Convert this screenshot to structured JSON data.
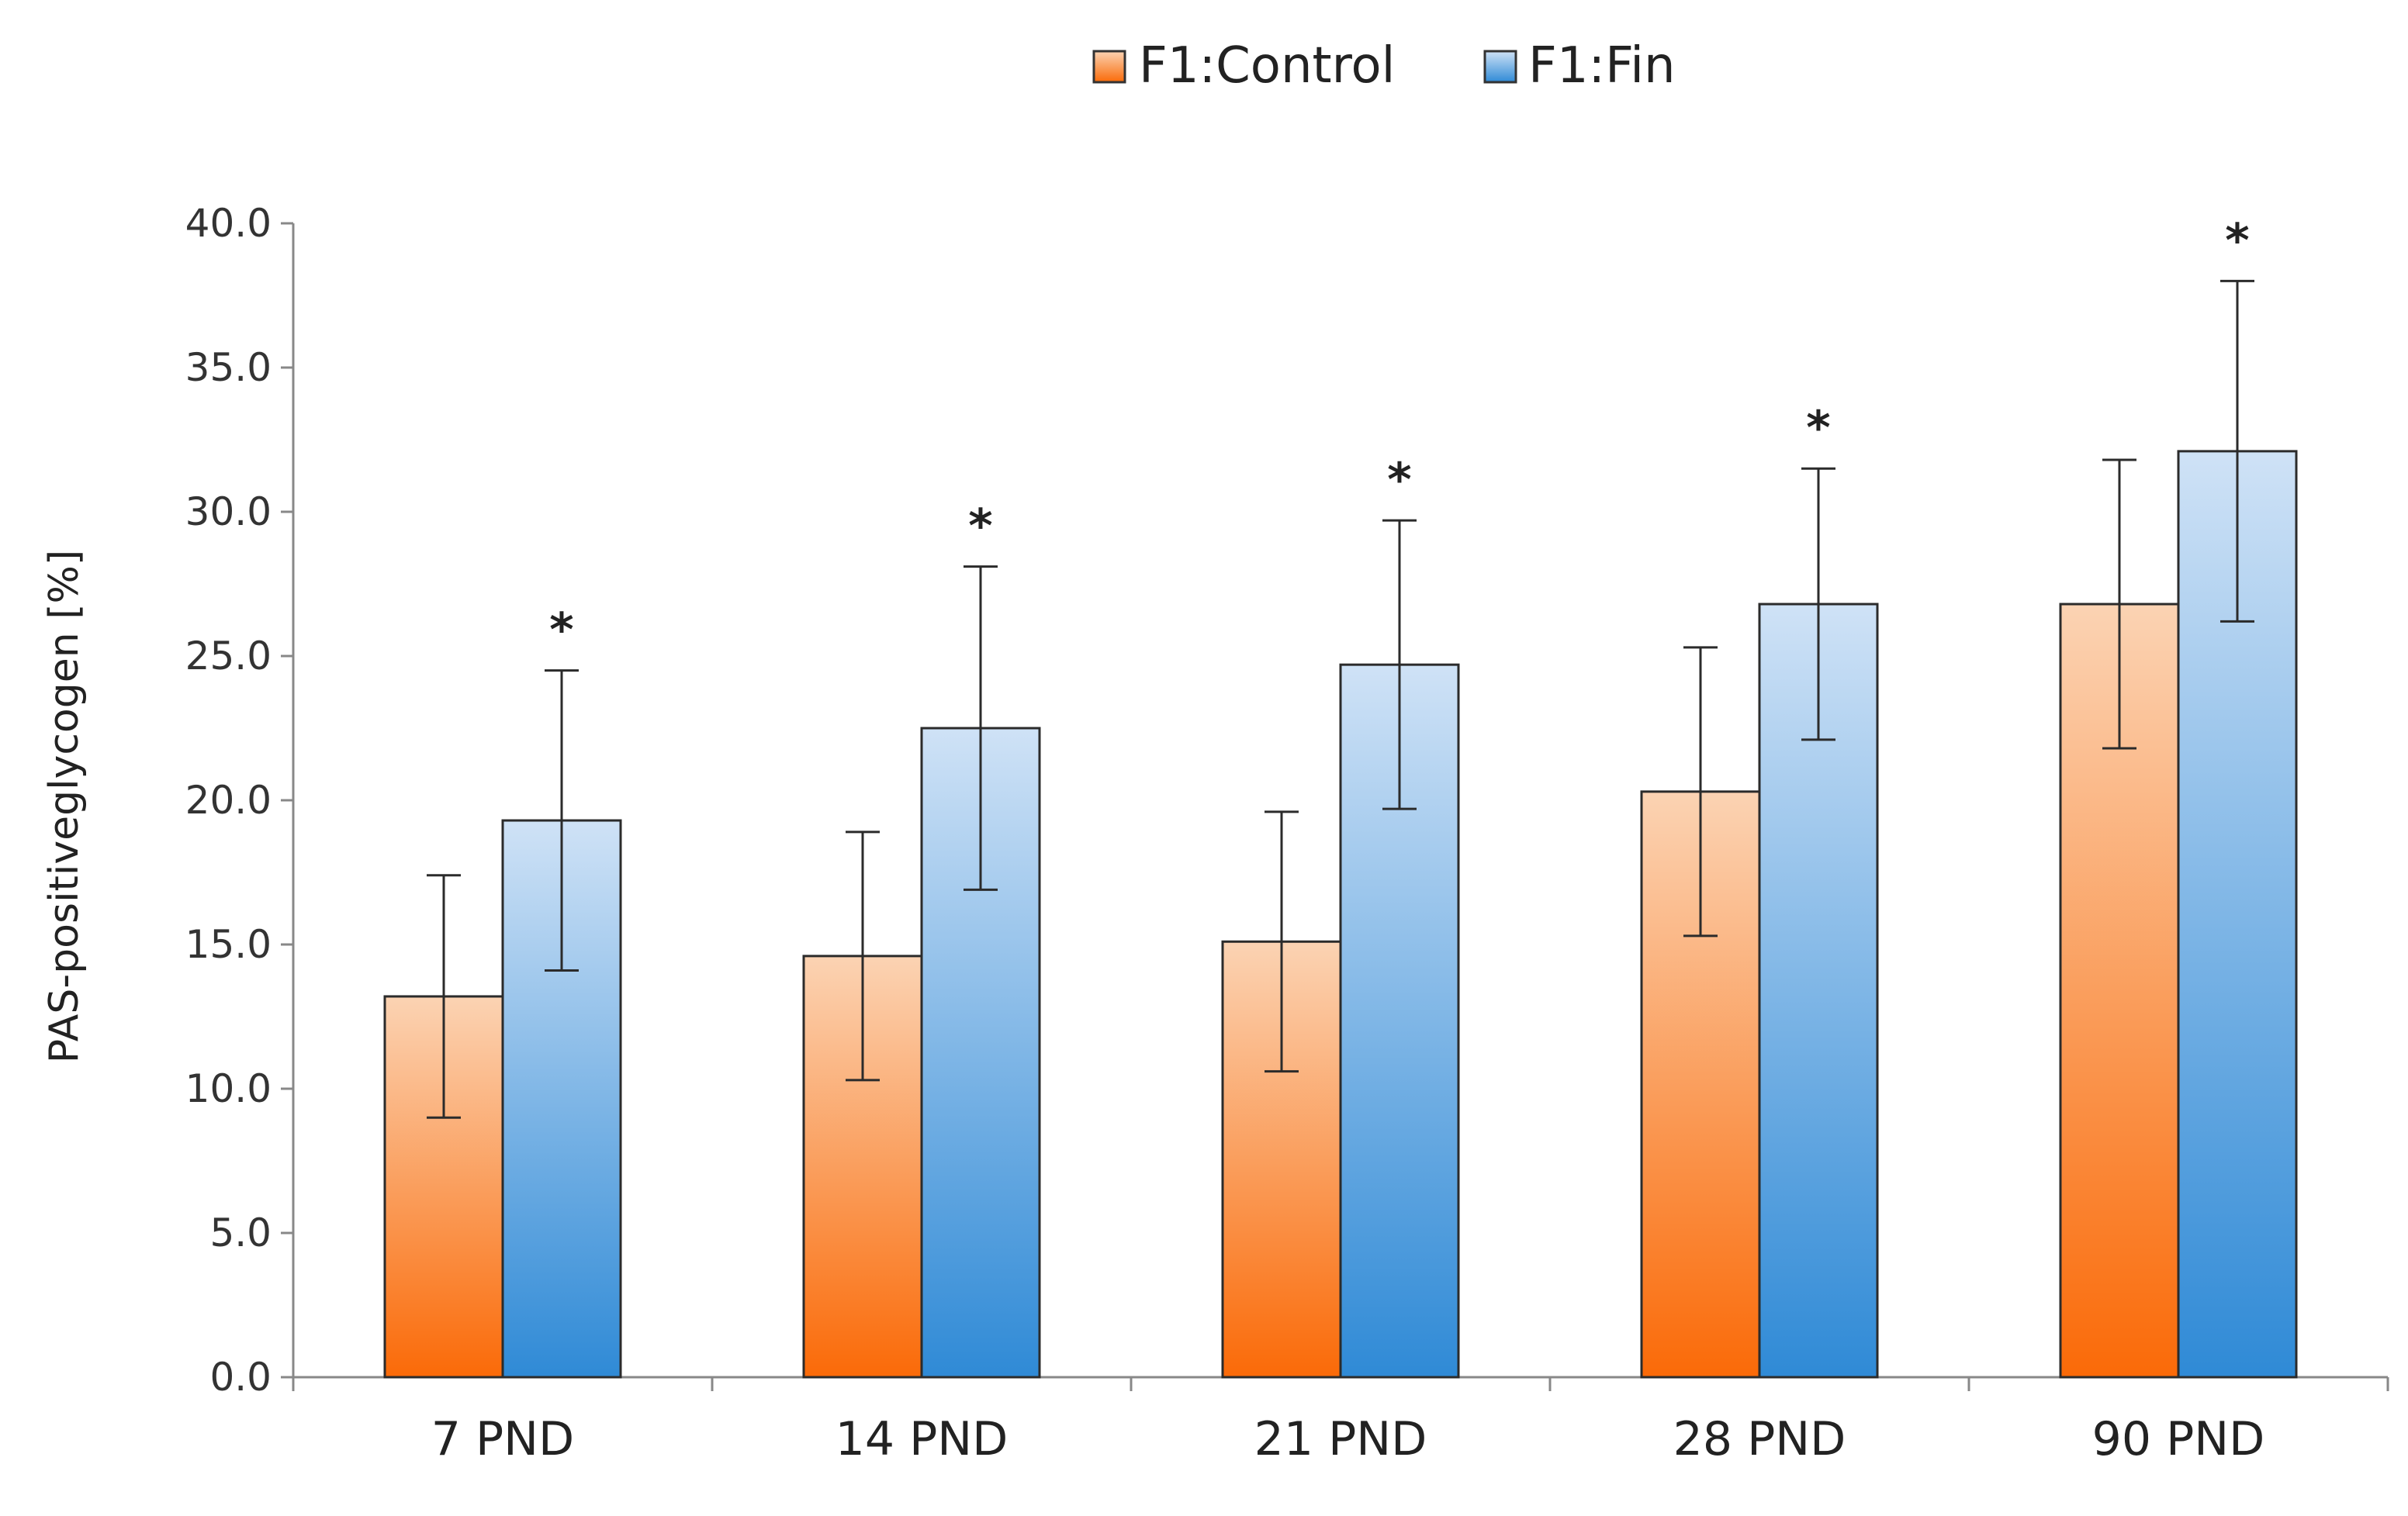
{
  "legend": {
    "items": [
      {
        "label": "F1:Control",
        "color": "#f47b20"
      },
      {
        "label": "F1:Fin",
        "color": "#3d8fd6"
      }
    ]
  },
  "chart_data": {
    "type": "bar",
    "title": "",
    "xlabel": "",
    "ylabel": "PAS-positiveglycogen [%]",
    "ylim": [
      0,
      40
    ],
    "yticks": [
      "0.0",
      "5.0",
      "10.0",
      "15.0",
      "20.0",
      "25.0",
      "30.0",
      "35.0",
      "40.0"
    ],
    "categories": [
      "7 PND",
      "14 PND",
      "21 PND",
      "28 PND",
      "90 PND"
    ],
    "series": [
      {
        "name": "F1:Control",
        "values": [
          13.2,
          14.6,
          15.1,
          20.3,
          26.8
        ],
        "errors": [
          4.2,
          4.3,
          4.5,
          5.0,
          5.0
        ],
        "colors": [
          "#fbd3b3",
          "#fa6a08"
        ]
      },
      {
        "name": "F1:Fin",
        "values": [
          19.3,
          22.5,
          24.7,
          26.8,
          32.1
        ],
        "errors": [
          5.2,
          5.6,
          5.0,
          4.7,
          5.9
        ],
        "colors": [
          "#cfe2f6",
          "#2f8ad6"
        ]
      }
    ],
    "significance": [
      "*",
      "*",
      "*",
      "*",
      "*"
    ],
    "grid": false,
    "legend_position": "top-center"
  }
}
